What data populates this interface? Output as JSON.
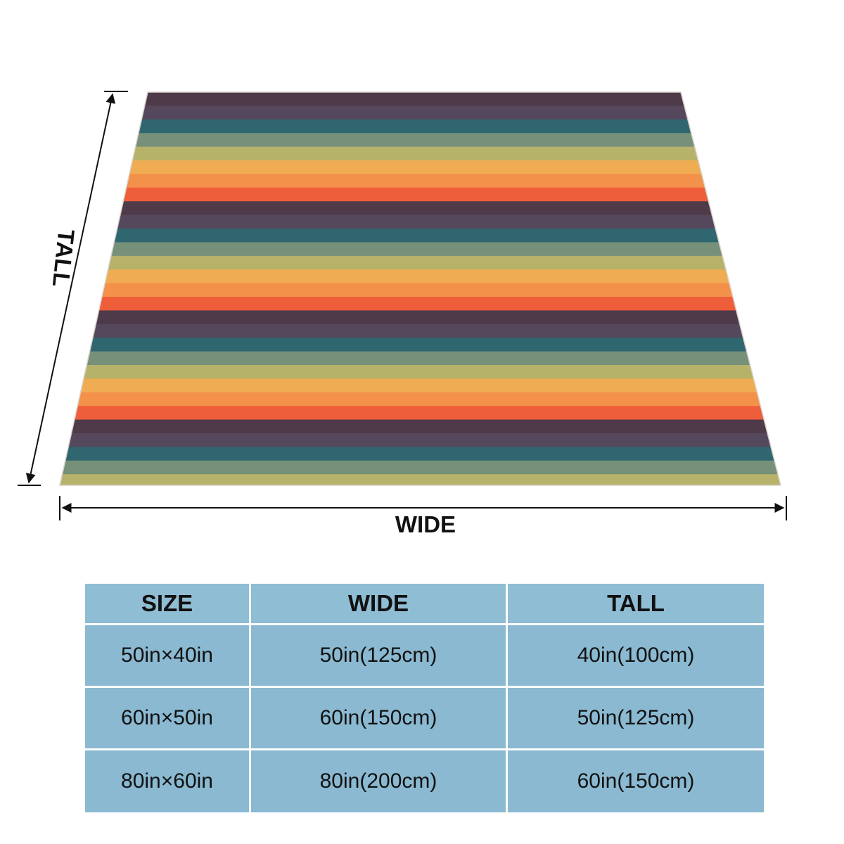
{
  "colors": {
    "table_header": "#8fbdd4",
    "table_body": "#8ab9d1",
    "stripes": [
      "#4f3a4a",
      "#55485c",
      "#2f6670",
      "#76907a",
      "#b7b26a",
      "#f0ac52",
      "#f3904a",
      "#ee5e3a"
    ]
  },
  "blanket": {
    "stripe_cycle": [
      "#4f3a4a",
      "#55485c",
      "#2f6670",
      "#76907a",
      "#b7b26a",
      "#f0ac52",
      "#f3904a",
      "#ee5e3a"
    ]
  },
  "dimensions": {
    "tall_label": "TALL",
    "wide_label": "WIDE"
  },
  "table": {
    "headers": [
      "SIZE",
      "WIDE",
      "TALL"
    ],
    "rows": [
      [
        "50in×40in",
        "50in(125cm)",
        "40in(100cm)"
      ],
      [
        "60in×50in",
        "60in(150cm)",
        "50in(125cm)"
      ],
      [
        "80in×60in",
        "80in(200cm)",
        "60in(150cm)"
      ]
    ]
  }
}
